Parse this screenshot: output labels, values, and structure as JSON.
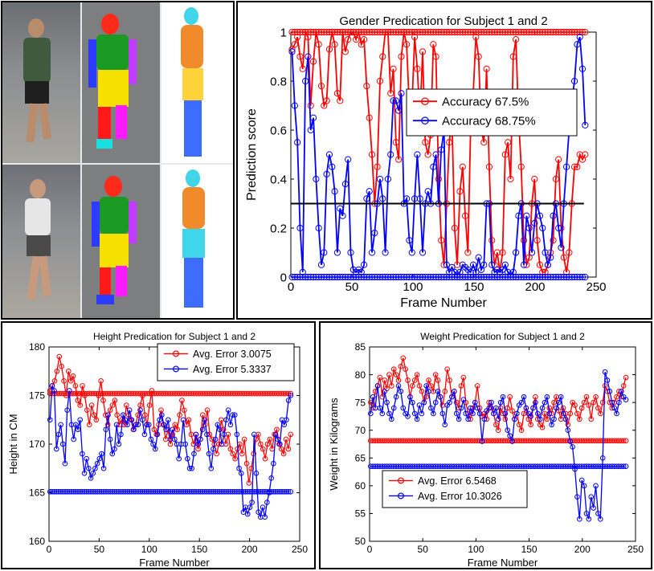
{
  "photos": {
    "label": "Two subjects walking: RGB frame, colored body-part point cloud, fitted 3D body mesh"
  },
  "colors": {
    "red": "#ff0000",
    "blue": "#0000ff",
    "black": "#000000"
  },
  "chart_data": [
    {
      "id": "gender",
      "type": "line",
      "title": "Gender Predication for Subject 1 and 2",
      "xlabel": "Frame Number",
      "ylabel": "Prediction score",
      "xlim": [
        0,
        250
      ],
      "ylim": [
        0,
        1
      ],
      "xticks": [
        0,
        50,
        100,
        150,
        200,
        250
      ],
      "yticks": [
        0,
        0.2,
        0.4,
        0.6,
        0.8,
        1
      ],
      "ytick_labels": [
        "0",
        "0.2",
        "0.4",
        "0.6",
        "0.8",
        "1"
      ],
      "legend_position": "top-right",
      "threshold": 0.3,
      "series": [
        {
          "name": "Accuracy 67.5%",
          "color": "#ff0000",
          "constant": 1,
          "values": [
            0.93,
            0.95,
            0.98,
            0.9,
            0.85,
            1,
            0.98,
            0.7,
            0.88,
            1,
            0.95,
            0.78,
            0.7,
            0.72,
            0.93,
            1,
            0.95,
            0.75,
            0.72,
            1,
            0.92,
            0.97,
            1,
            1,
            0.97,
            1,
            0.95,
            0.97,
            0.78,
            0.65,
            0.5,
            0.3,
            0.45,
            0.8,
            0.9,
            1,
            1,
            0.75,
            0.85,
            0.55,
            0.48,
            0.9,
            1,
            0.95,
            0.7,
            0.7,
            0.98,
            0.85,
            0.65,
            0.92,
            0.55,
            0.5,
            0.58,
            0.95,
            0.9,
            0.4,
            0.15,
            0.05,
            0.3,
            0.55,
            0.65,
            0.2,
            0.05,
            0.35,
            0.45,
            0.25,
            0.1,
            0.6,
            0.75,
            0.98,
            0.9,
            0.6,
            0.55,
            0.85,
            0.45,
            0.15,
            0.05,
            0.1,
            0.02,
            0.1,
            0.5,
            0.55,
            0.4,
            0.9,
            0.97,
            0.65,
            0.45,
            0.15,
            0.05,
            0.08,
            0.3,
            0.4,
            0.15,
            0.05,
            0.02,
            0.02,
            0.05,
            0.1,
            0.15,
            0.4,
            0.48,
            0.2,
            0.08,
            0.02,
            0.1,
            0.3,
            0.45,
            0.45,
            0.5,
            0.48,
            0.5
          ]
        },
        {
          "name": "Accuracy 68.75%",
          "color": "#0000ff",
          "constant": 0,
          "values": [
            0.92,
            0.7,
            0.55,
            0.2,
            0.02,
            0.8,
            0.9,
            0.6,
            0.65,
            0.4,
            0.2,
            0.05,
            0.1,
            0.42,
            0.5,
            0.45,
            0.35,
            0.1,
            0.28,
            0.25,
            0.38,
            0.48,
            0.1,
            0.03,
            0.02,
            0.03,
            0.02,
            0.05,
            0.32,
            0.35,
            0.1,
            0.18,
            0.3,
            0.4,
            0.32,
            0.1,
            0.4,
            0.5,
            0.72,
            0.72,
            0.68,
            0.75,
            0.3,
            0.32,
            0.15,
            0.1,
            0.32,
            0.5,
            0.32,
            0.1,
            0.3,
            0.35,
            0.3,
            0.45,
            0.5,
            0.3,
            0.52,
            0.6,
            0.05,
            0.02,
            0.04,
            0.02,
            0.01,
            0.02,
            0.05,
            0.04,
            0.03,
            0.02,
            0.05,
            0.02,
            0.08,
            0.03,
            0.05,
            0.3,
            0.3,
            0.05,
            0.02,
            0.03,
            0.02,
            0.03,
            0.05,
            0.02,
            0.01,
            0.02,
            0.1,
            0.25,
            0.3,
            0.05,
            0.25,
            0.2,
            0.1,
            0.22,
            0.3,
            0.25,
            0.2,
            0.1,
            0.05,
            0.08,
            0.25,
            0.3,
            0.2,
            0.12,
            0.3,
            0.45,
            0.6,
            0.72,
            0.8,
            0.95,
            0.98,
            0.85,
            0.62
          ]
        }
      ]
    },
    {
      "id": "height",
      "type": "line",
      "title": "Height Predication for Subject 1 and 2",
      "xlabel": "Frame Number",
      "ylabel": "Height in CM",
      "xlim": [
        0,
        250
      ],
      "ylim": [
        160,
        180
      ],
      "xticks": [
        0,
        50,
        100,
        150,
        200,
        250
      ],
      "yticks": [
        160,
        165,
        170,
        175,
        180
      ],
      "legend_position": "top-right",
      "series": [
        {
          "name": "Avg. Error 3.0075",
          "color": "#ff0000",
          "constant": 175.2,
          "values": [
            175.5,
            176,
            176.5,
            177.5,
            179,
            178,
            176.5,
            175,
            177.5,
            176.5,
            177,
            176,
            174.5,
            174,
            176,
            175,
            173.5,
            172,
            174,
            173,
            172.5,
            175,
            176.5,
            174.5,
            173,
            172,
            173.5,
            174,
            174.5,
            173,
            172,
            172.5,
            172,
            174,
            173,
            172.5,
            171.5,
            172,
            173,
            174,
            175,
            173,
            172,
            174,
            175.5,
            171.5,
            171,
            172,
            173.5,
            172,
            170.5,
            171.5,
            170,
            171,
            172,
            171.5,
            173,
            174.5,
            173.5,
            172,
            172.5,
            171,
            170,
            171,
            169.5,
            170.5,
            173,
            172,
            173.5,
            171,
            170.5,
            170,
            169,
            170,
            172.5,
            171.5,
            170,
            171,
            169.5,
            169,
            168.5,
            169.5,
            170,
            169,
            170.5,
            168,
            166,
            167.5,
            169,
            170.5,
            171,
            170,
            169.5,
            168.5,
            170,
            170.5,
            169.5,
            171,
            171.5,
            170,
            169.5,
            169,
            170.5,
            169.5,
            171
          ]
        },
        {
          "name": "Avg. Error 5.3337",
          "color": "#0000ff",
          "constant": 165.1,
          "values": [
            172.5,
            176,
            175.5,
            169.5,
            171,
            172,
            170,
            168,
            173.5,
            175.5,
            172,
            170.5,
            172,
            171.5,
            172.5,
            169,
            167,
            168.5,
            167.5,
            166.5,
            167,
            167.5,
            168,
            168.5,
            169,
            167.5,
            171.5,
            173,
            170.5,
            169,
            169.5,
            172,
            170,
            171,
            173,
            172.5,
            172,
            173.5,
            172.5,
            171.5,
            172,
            172,
            173.5,
            172.5,
            171,
            172,
            172,
            170.5,
            170,
            169.5,
            171,
            172.5,
            173,
            172,
            171.5,
            172.5,
            170.5,
            171.5,
            170.5,
            170,
            168.5,
            170,
            172.5,
            170,
            168.5,
            167.5,
            167.5,
            169,
            171,
            170,
            170.5,
            171.5,
            172.5,
            171,
            169,
            167.5,
            169.5,
            170.5,
            172,
            171.5,
            170,
            171,
            172.5,
            173.5,
            172,
            173,
            173,
            171,
            167.5,
            167,
            163,
            163.5,
            162.8,
            163.5,
            164,
            171,
            167,
            163,
            162.5,
            163.5,
            162.5,
            164,
            165,
            166.5,
            168,
            171,
            170.5,
            170,
            172.5,
            172,
            172.5,
            174.5,
            175
          ]
        }
      ]
    },
    {
      "id": "weight",
      "type": "line",
      "title": "Weight Predication for Subject 1 and 2",
      "xlabel": "Frame Number",
      "ylabel": "Weight in Kilograms",
      "xlim": [
        0,
        250
      ],
      "ylim": [
        50,
        85
      ],
      "xticks": [
        0,
        50,
        100,
        150,
        200,
        250
      ],
      "yticks": [
        50,
        55,
        60,
        65,
        70,
        75,
        80,
        85
      ],
      "legend_position": "bottom-left",
      "series": [
        {
          "name": "Avg. Error 6.5468",
          "color": "#ff0000",
          "constant": 68.1,
          "values": [
            75,
            74,
            77,
            78,
            79.5,
            76,
            79,
            77.5,
            80,
            78,
            81,
            80,
            79,
            81.5,
            83,
            81,
            79,
            76,
            78,
            79,
            80,
            78,
            77,
            75,
            76,
            79,
            78,
            77,
            80,
            79,
            76,
            74.5,
            77,
            81,
            79,
            76,
            77,
            75,
            74,
            78,
            79.5,
            75,
            73,
            72,
            74,
            75,
            78,
            74,
            72.5,
            73,
            72,
            75,
            74,
            73,
            71,
            70,
            74,
            73,
            72,
            74,
            76,
            73.5,
            72,
            73,
            71,
            70,
            73,
            74,
            72,
            71,
            74,
            76,
            72,
            71,
            70.5,
            73,
            72,
            74,
            73,
            75,
            76,
            73.5,
            72,
            74,
            73,
            71,
            73,
            75,
            74.5,
            73,
            72,
            74,
            75,
            76,
            74.5,
            72,
            75,
            76,
            74,
            73,
            75,
            78,
            77,
            75,
            74,
            75,
            76,
            77,
            76,
            78,
            79.5
          ]
        },
        {
          "name": "Avg. Error 10.3026",
          "color": "#0000ff",
          "constant": 63.5,
          "values": [
            73,
            76,
            74,
            78,
            74,
            73,
            77,
            75,
            73,
            72,
            74,
            76,
            78,
            77,
            74,
            73,
            72.5,
            76,
            75,
            73,
            72,
            74.5,
            73,
            75,
            78,
            77,
            74,
            73,
            75,
            77,
            76,
            73,
            71,
            74.5,
            75,
            76,
            77,
            73,
            72,
            74,
            75.5,
            73,
            72,
            74,
            73,
            75,
            74,
            73,
            68,
            72,
            73.5,
            74,
            75,
            73,
            74,
            72,
            75,
            76,
            73,
            70,
            69,
            68,
            72,
            73,
            74.5,
            75,
            76,
            74,
            73,
            72.5,
            74,
            75,
            73,
            72,
            74,
            75,
            76,
            73,
            71,
            72,
            74,
            75,
            76,
            73,
            72,
            70,
            68,
            67,
            63,
            58,
            54,
            61,
            60,
            55,
            54,
            58,
            56,
            60,
            55,
            54,
            65,
            80.5,
            79,
            77,
            75,
            74,
            73,
            75,
            77,
            76,
            75.5
          ]
        }
      ]
    }
  ]
}
